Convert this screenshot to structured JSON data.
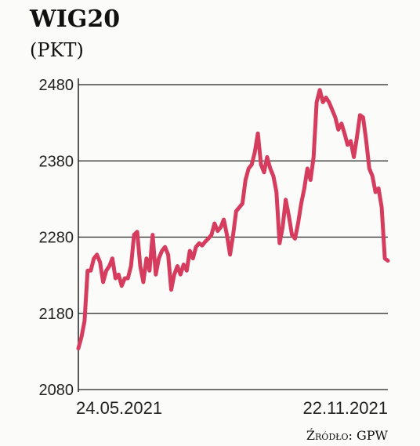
{
  "chart_data": {
    "type": "line",
    "title": "WIG20",
    "subtitle": "(PKT)",
    "source": "Źródło: GPW",
    "categories": [
      "24.05.2021",
      null,
      null,
      null,
      null,
      null,
      null,
      null,
      null,
      null,
      null,
      null,
      null,
      null,
      null,
      null,
      null,
      null,
      null,
      null,
      null,
      null,
      null,
      null,
      null,
      null,
      null,
      null,
      null,
      null,
      null,
      null,
      null,
      null,
      null,
      null,
      null,
      null,
      null,
      null,
      null,
      null,
      null,
      null,
      null,
      null,
      null,
      null,
      null,
      null,
      null,
      null,
      null,
      null,
      null,
      null,
      null,
      null,
      null,
      null,
      null,
      null,
      null,
      null,
      null,
      null,
      null,
      null,
      null,
      null,
      null,
      null,
      null,
      null,
      null,
      null,
      null,
      null,
      null,
      null,
      null,
      null,
      null,
      null,
      null,
      null,
      null,
      null,
      null,
      null,
      null,
      null,
      null,
      null,
      null,
      null,
      null,
      null,
      null,
      null,
      "22.11.2021"
    ],
    "values": [
      2134,
      2149,
      2170,
      2236,
      2236,
      2252,
      2257,
      2247,
      2221,
      2236,
      2242,
      2252,
      2226,
      2231,
      2216,
      2226,
      2226,
      2242,
      2283,
      2287,
      2242,
      2221,
      2252,
      2236,
      2283,
      2231,
      2252,
      2262,
      2267,
      2257,
      2211,
      2231,
      2242,
      2231,
      2244,
      2236,
      2262,
      2252,
      2267,
      2272,
      2269,
      2274,
      2278,
      2283,
      2298,
      2288,
      2293,
      2303,
      2283,
      2257,
      2283,
      2314,
      2319,
      2324,
      2355,
      2370,
      2375,
      2391,
      2416,
      2375,
      2365,
      2385,
      2370,
      2360,
      2339,
      2272,
      2293,
      2329,
      2308,
      2283,
      2278,
      2298,
      2324,
      2344,
      2370,
      2355,
      2385,
      2457,
      2473,
      2457,
      2463,
      2457,
      2447,
      2437,
      2421,
      2429,
      2416,
      2401,
      2406,
      2385,
      2411,
      2440,
      2437,
      2406,
      2370,
      2360,
      2339,
      2344,
      2319,
      2252,
      2249
    ],
    "color": "#d63c5e",
    "ylim": [
      2080,
      2480
    ],
    "yticks": [
      2080,
      2180,
      2280,
      2380,
      2480
    ],
    "grid": true
  }
}
